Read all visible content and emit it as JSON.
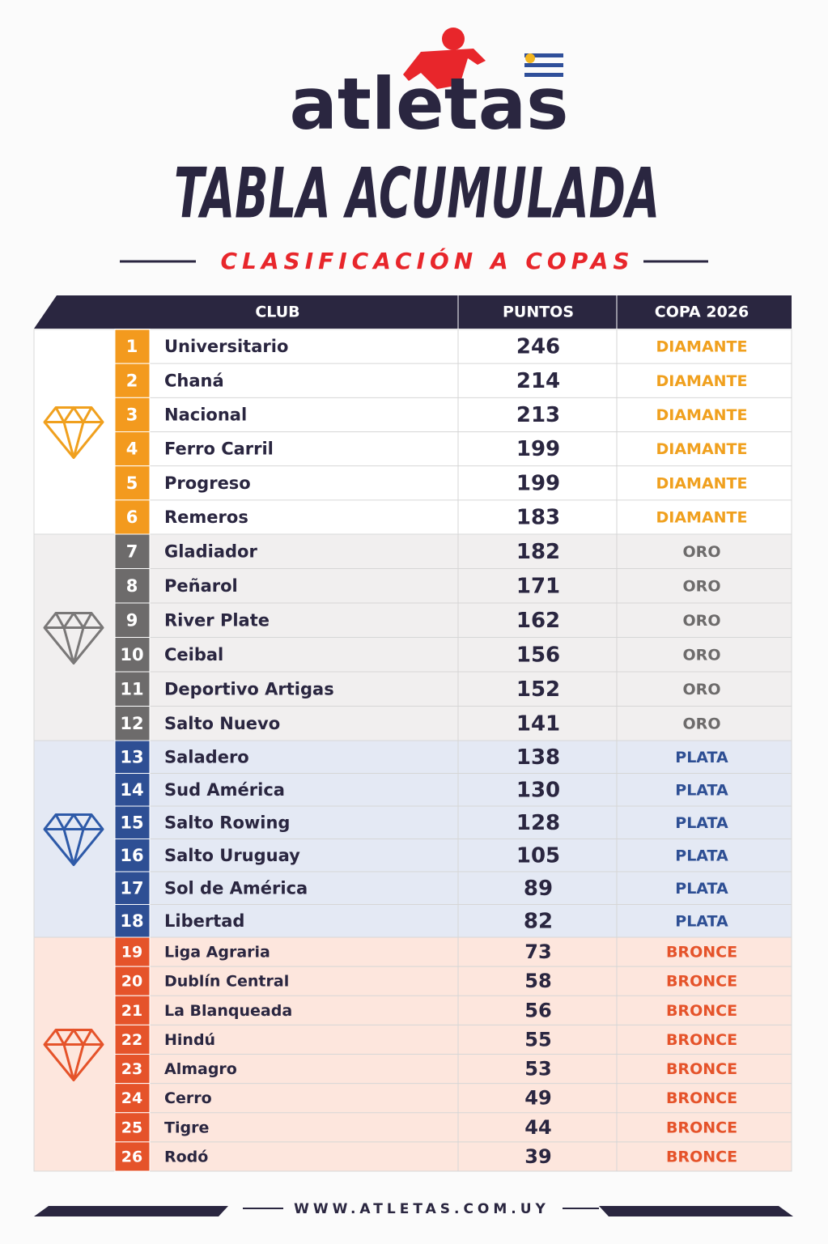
{
  "brand": "atletas",
  "title": "TABLA ACUMULADA",
  "subtitle": "CLASIFICACIÓN A COPAS",
  "table": {
    "headers": [
      "CLUB",
      "PUNTOS",
      "COPA 2026"
    ],
    "rows": [
      [
        1,
        "Universitario",
        246,
        "DIAMANTE"
      ],
      [
        2,
        "Chaná",
        214,
        "DIAMANTE"
      ],
      [
        3,
        "Nacional",
        213,
        "DIAMANTE"
      ],
      [
        4,
        "Ferro Carril",
        199,
        "DIAMANTE"
      ],
      [
        5,
        "Progreso",
        199,
        "DIAMANTE"
      ],
      [
        6,
        "Remeros",
        183,
        "DIAMANTE"
      ],
      [
        7,
        "Gladiador",
        182,
        "ORO"
      ],
      [
        8,
        "Peñarol",
        171,
        "ORO"
      ],
      [
        9,
        "River Plate",
        162,
        "ORO"
      ],
      [
        10,
        "Ceibal",
        156,
        "ORO"
      ],
      [
        11,
        "Deportivo Artigas",
        152,
        "ORO"
      ],
      [
        12,
        "Salto Nuevo",
        141,
        "ORO"
      ],
      [
        13,
        "Saladero",
        138,
        "PLATA"
      ],
      [
        14,
        "Sud América",
        130,
        "PLATA"
      ],
      [
        15,
        "Salto Rowing",
        128,
        "PLATA"
      ],
      [
        16,
        "Salto Uruguay",
        105,
        "PLATA"
      ],
      [
        17,
        "Sol de América",
        89,
        "PLATA"
      ],
      [
        18,
        "Libertad",
        82,
        "PLATA"
      ],
      [
        19,
        "Liga Agraria",
        73,
        "BRONCE"
      ],
      [
        20,
        "Dublín Central",
        58,
        "BRONCE"
      ],
      [
        21,
        "La Blanqueada",
        56,
        "BRONCE"
      ],
      [
        22,
        "Hindú",
        55,
        "BRONCE"
      ],
      [
        23,
        "Almagro",
        53,
        "BRONCE"
      ],
      [
        24,
        "Cerro",
        49,
        "BRONCE"
      ],
      [
        25,
        "Tigre",
        44,
        "BRONCE"
      ],
      [
        26,
        "Rodó",
        39,
        "BRONCE"
      ]
    ]
  },
  "footer": "WWW.ATLETAS.COM.UY"
}
